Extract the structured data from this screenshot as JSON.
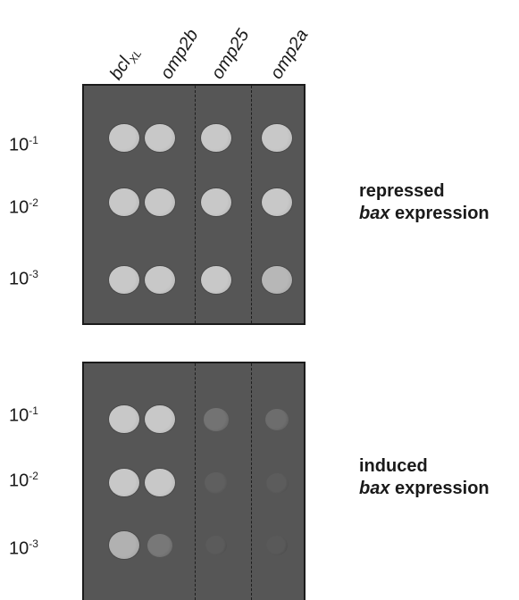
{
  "columns": [
    {
      "main": "bcl",
      "sub": "XL"
    },
    {
      "main": "omp2b",
      "sub": ""
    },
    {
      "main": "omp25",
      "sub": ""
    },
    {
      "main": "omp2a",
      "sub": ""
    }
  ],
  "panels": [
    {
      "dilutions": [
        {
          "base": "10",
          "exp": "-1"
        },
        {
          "base": "10",
          "exp": "-2"
        },
        {
          "base": "10",
          "exp": "-3"
        }
      ],
      "condition": {
        "line1": "repressed",
        "italic": "bax",
        "rest": " expression"
      },
      "growth": [
        [
          1,
          1,
          1,
          1
        ],
        [
          1,
          1,
          1,
          1
        ],
        [
          1,
          1,
          1,
          0.85
        ]
      ]
    },
    {
      "dilutions": [
        {
          "base": "10",
          "exp": "-1"
        },
        {
          "base": "10",
          "exp": "-2"
        },
        {
          "base": "10",
          "exp": "-3"
        }
      ],
      "condition": {
        "line1": "induced",
        "italic": "bax",
        "rest": " expression"
      },
      "growth": [
        [
          1,
          1,
          0.25,
          0.2
        ],
        [
          1,
          1,
          0.08,
          0.05
        ],
        [
          0.8,
          0.3,
          0.04,
          0.03
        ]
      ]
    }
  ]
}
